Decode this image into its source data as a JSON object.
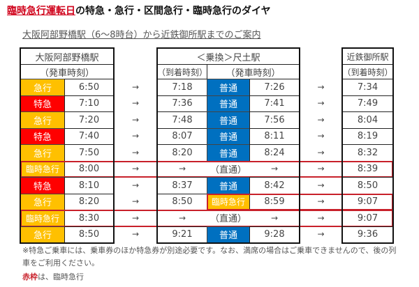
{
  "title": {
    "highlight": "臨時急行運転日",
    "rest": "の特急・急行・区間急行・臨時急行のダイヤ"
  },
  "subtitle": "大阪阿部野橋駅（6～8時台）から近鉄御所駅までのご案内",
  "headers": {
    "origin": "大阪阿部野橋駅",
    "origin_sub": "（発車時刻）",
    "transfer": "＜乗換＞尺土駅",
    "arr": "（到着時刻）",
    "dep": "（発車時刻）",
    "dest": "近鉄御所駅",
    "dest_sub": "（到着時刻）"
  },
  "arrow": "→",
  "through": "（直通）",
  "colors": {
    "急行": "#FFC000",
    "特急": "#FF0000",
    "臨時急行": "#FFC000",
    "普通": "#0070C0"
  },
  "rows": [
    {
      "type": "急行",
      "dep": "6:50",
      "arr_t": "7:18",
      "type2": "普通",
      "dep2": "7:26",
      "arr": "7:34"
    },
    {
      "type": "特急",
      "dep": "7:10",
      "arr_t": "7:36",
      "type2": "普通",
      "dep2": "7:41",
      "arr": "7:49"
    },
    {
      "type": "急行",
      "dep": "7:20",
      "arr_t": "7:48",
      "type2": "普通",
      "dep2": "7:56",
      "arr": "8:04"
    },
    {
      "type": "特急",
      "dep": "7:40",
      "arr_t": "8:07",
      "type2": "普通",
      "dep2": "8:11",
      "arr": "8:19"
    },
    {
      "type": "急行",
      "dep": "7:50",
      "arr_t": "8:20",
      "type2": "普通",
      "dep2": "8:24",
      "arr": "8:32"
    },
    {
      "type": "臨時急行",
      "dep": "8:00",
      "through": true,
      "arr": "8:39",
      "frame": "full"
    },
    {
      "type": "特急",
      "dep": "8:10",
      "arr_t": "8:37",
      "type2": "普通",
      "dep2": "8:42",
      "arr": "8:50"
    },
    {
      "type": "急行",
      "dep": "8:20",
      "arr_t": "8:50",
      "type2": "臨時急行",
      "dep2": "8:59",
      "arr": "9:07",
      "frame": "partial"
    },
    {
      "type": "臨時急行",
      "dep": "8:30",
      "through": true,
      "arr": "9:07",
      "frame": "full"
    },
    {
      "type": "急行",
      "dep": "8:50",
      "arr_t": "9:21",
      "type2": "普通",
      "dep2": "9:28",
      "arr": "9:36"
    }
  ],
  "notes": {
    "line1": "※特急ご乗車には、乗車券のほか特急券が別途必要です。なお、満席の場合はご乗車できませんので、後の列",
    "line2": "車をご利用ください。",
    "legend_red": "赤枠",
    "legend_rest": "は、臨時急行"
  }
}
